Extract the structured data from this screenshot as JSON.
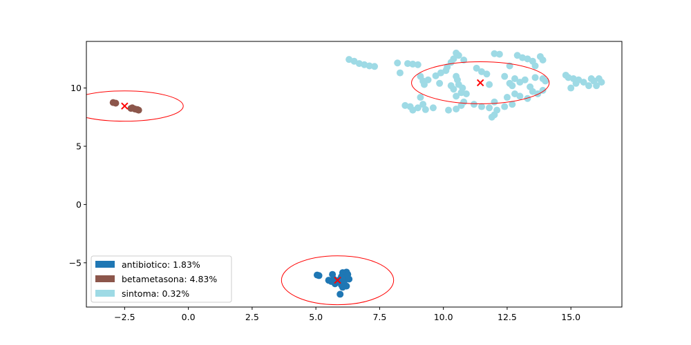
{
  "chart_data": {
    "type": "scatter",
    "xlim": [
      -4.0,
      17.0
    ],
    "ylim": [
      -8.8,
      14.0
    ],
    "xticks": [
      -2.5,
      0.0,
      2.5,
      5.0,
      7.5,
      10.0,
      12.5,
      15.0
    ],
    "xtick_labels": [
      "−2.5",
      "0.0",
      "2.5",
      "5.0",
      "7.5",
      "10.0",
      "12.5",
      "15.0"
    ],
    "yticks": [
      -5,
      0,
      5,
      10
    ],
    "ytick_labels": [
      "−5",
      "0",
      "5",
      "10"
    ],
    "grid": false,
    "legend_position": "lower-left",
    "series": [
      {
        "name": "antibiotico: 1.83%",
        "color": "#1f77b4",
        "centroid": [
          5.85,
          -6.5
        ],
        "ellipse_radii": [
          2.2,
          2.1
        ],
        "points": [
          [
            5.05,
            -6.05
          ],
          [
            5.12,
            -6.1
          ],
          [
            5.5,
            -6.5
          ],
          [
            5.7,
            -6.4
          ],
          [
            5.65,
            -6.0
          ],
          [
            5.75,
            -6.8
          ],
          [
            5.9,
            -6.5
          ],
          [
            6.0,
            -6.2
          ],
          [
            6.05,
            -5.85
          ],
          [
            6.15,
            -6.3
          ],
          [
            6.2,
            -5.8
          ],
          [
            6.25,
            -6.0
          ],
          [
            6.1,
            -6.5
          ],
          [
            6.2,
            -7.0
          ],
          [
            6.05,
            -7.1
          ],
          [
            6.1,
            -6.7
          ],
          [
            6.3,
            -6.4
          ],
          [
            5.95,
            -7.7
          ],
          [
            6.0,
            -6.9
          ],
          [
            5.6,
            -6.6
          ]
        ]
      },
      {
        "name": "betametasona: 4.83%",
        "color": "#8c564b",
        "centroid": [
          -2.5,
          8.45
        ],
        "ellipse_radii": [
          2.3,
          1.3
        ],
        "points": [
          [
            -2.95,
            8.75
          ],
          [
            -2.85,
            8.7
          ],
          [
            -2.2,
            8.3
          ],
          [
            -2.1,
            8.2
          ],
          [
            -2.0,
            8.15
          ],
          [
            -1.95,
            8.1
          ],
          [
            -2.25,
            8.25
          ]
        ]
      },
      {
        "name": "sintoma: 0.32%",
        "color": "#9edae5",
        "centroid": [
          11.45,
          10.45
        ],
        "ellipse_radii": [
          2.7,
          1.8
        ],
        "points": [
          [
            6.3,
            12.45
          ],
          [
            6.5,
            12.3
          ],
          [
            6.7,
            12.1
          ],
          [
            6.9,
            12.0
          ],
          [
            7.1,
            11.9
          ],
          [
            7.3,
            11.85
          ],
          [
            8.2,
            12.15
          ],
          [
            8.3,
            11.3
          ],
          [
            8.6,
            12.1
          ],
          [
            8.8,
            12.05
          ],
          [
            9.0,
            12.0
          ],
          [
            9.1,
            11.0
          ],
          [
            9.2,
            10.6
          ],
          [
            9.25,
            10.3
          ],
          [
            9.4,
            10.7
          ],
          [
            9.7,
            11.05
          ],
          [
            9.9,
            11.3
          ],
          [
            9.85,
            10.4
          ],
          [
            10.1,
            11.5
          ],
          [
            10.15,
            11.8
          ],
          [
            10.3,
            12.2
          ],
          [
            10.4,
            12.5
          ],
          [
            10.5,
            13.0
          ],
          [
            10.6,
            12.8
          ],
          [
            10.8,
            12.4
          ],
          [
            10.5,
            11.0
          ],
          [
            10.55,
            10.7
          ],
          [
            10.6,
            10.3
          ],
          [
            10.75,
            10.0
          ],
          [
            10.4,
            9.9
          ],
          [
            10.3,
            10.2
          ],
          [
            10.5,
            9.3
          ],
          [
            10.7,
            9.6
          ],
          [
            10.9,
            9.5
          ],
          [
            10.2,
            8.1
          ],
          [
            10.5,
            8.2
          ],
          [
            10.7,
            8.5
          ],
          [
            10.8,
            8.8
          ],
          [
            11.2,
            8.6
          ],
          [
            11.5,
            8.4
          ],
          [
            11.8,
            8.3
          ],
          [
            12.0,
            8.8
          ],
          [
            12.1,
            8.1
          ],
          [
            12.0,
            7.7
          ],
          [
            11.9,
            7.5
          ],
          [
            12.4,
            8.4
          ],
          [
            12.7,
            8.6
          ],
          [
            12.5,
            9.2
          ],
          [
            12.8,
            9.5
          ],
          [
            13.0,
            9.3
          ],
          [
            13.3,
            9.1
          ],
          [
            13.5,
            9.7
          ],
          [
            13.7,
            9.5
          ],
          [
            13.9,
            9.8
          ],
          [
            11.3,
            11.7
          ],
          [
            11.5,
            11.4
          ],
          [
            11.7,
            11.2
          ],
          [
            11.8,
            10.3
          ],
          [
            12.0,
            12.95
          ],
          [
            12.2,
            12.9
          ],
          [
            12.6,
            11.9
          ],
          [
            12.9,
            12.8
          ],
          [
            13.1,
            12.6
          ],
          [
            13.3,
            12.5
          ],
          [
            13.5,
            12.3
          ],
          [
            13.6,
            11.9
          ],
          [
            13.8,
            12.7
          ],
          [
            13.9,
            12.4
          ],
          [
            12.4,
            11.0
          ],
          [
            12.6,
            10.4
          ],
          [
            12.8,
            10.8
          ],
          [
            13.0,
            10.5
          ],
          [
            13.2,
            10.7
          ],
          [
            13.6,
            10.9
          ],
          [
            13.9,
            10.8
          ],
          [
            14.0,
            10.6
          ],
          [
            13.4,
            10.1
          ],
          [
            12.7,
            10.2
          ],
          [
            8.5,
            8.5
          ],
          [
            8.7,
            8.4
          ],
          [
            8.8,
            8.1
          ],
          [
            9.0,
            8.3
          ],
          [
            9.2,
            8.6
          ],
          [
            9.3,
            8.15
          ],
          [
            9.6,
            8.3
          ],
          [
            9.1,
            9.2
          ],
          [
            14.8,
            11.1
          ],
          [
            14.9,
            10.9
          ],
          [
            15.1,
            10.8
          ],
          [
            15.2,
            10.4
          ],
          [
            15.3,
            10.7
          ],
          [
            15.5,
            10.5
          ],
          [
            15.0,
            10.0
          ],
          [
            15.7,
            10.2
          ],
          [
            15.9,
            10.6
          ],
          [
            16.0,
            10.2
          ],
          [
            16.2,
            10.5
          ],
          [
            16.1,
            10.8
          ],
          [
            15.8,
            10.8
          ]
        ]
      }
    ]
  }
}
